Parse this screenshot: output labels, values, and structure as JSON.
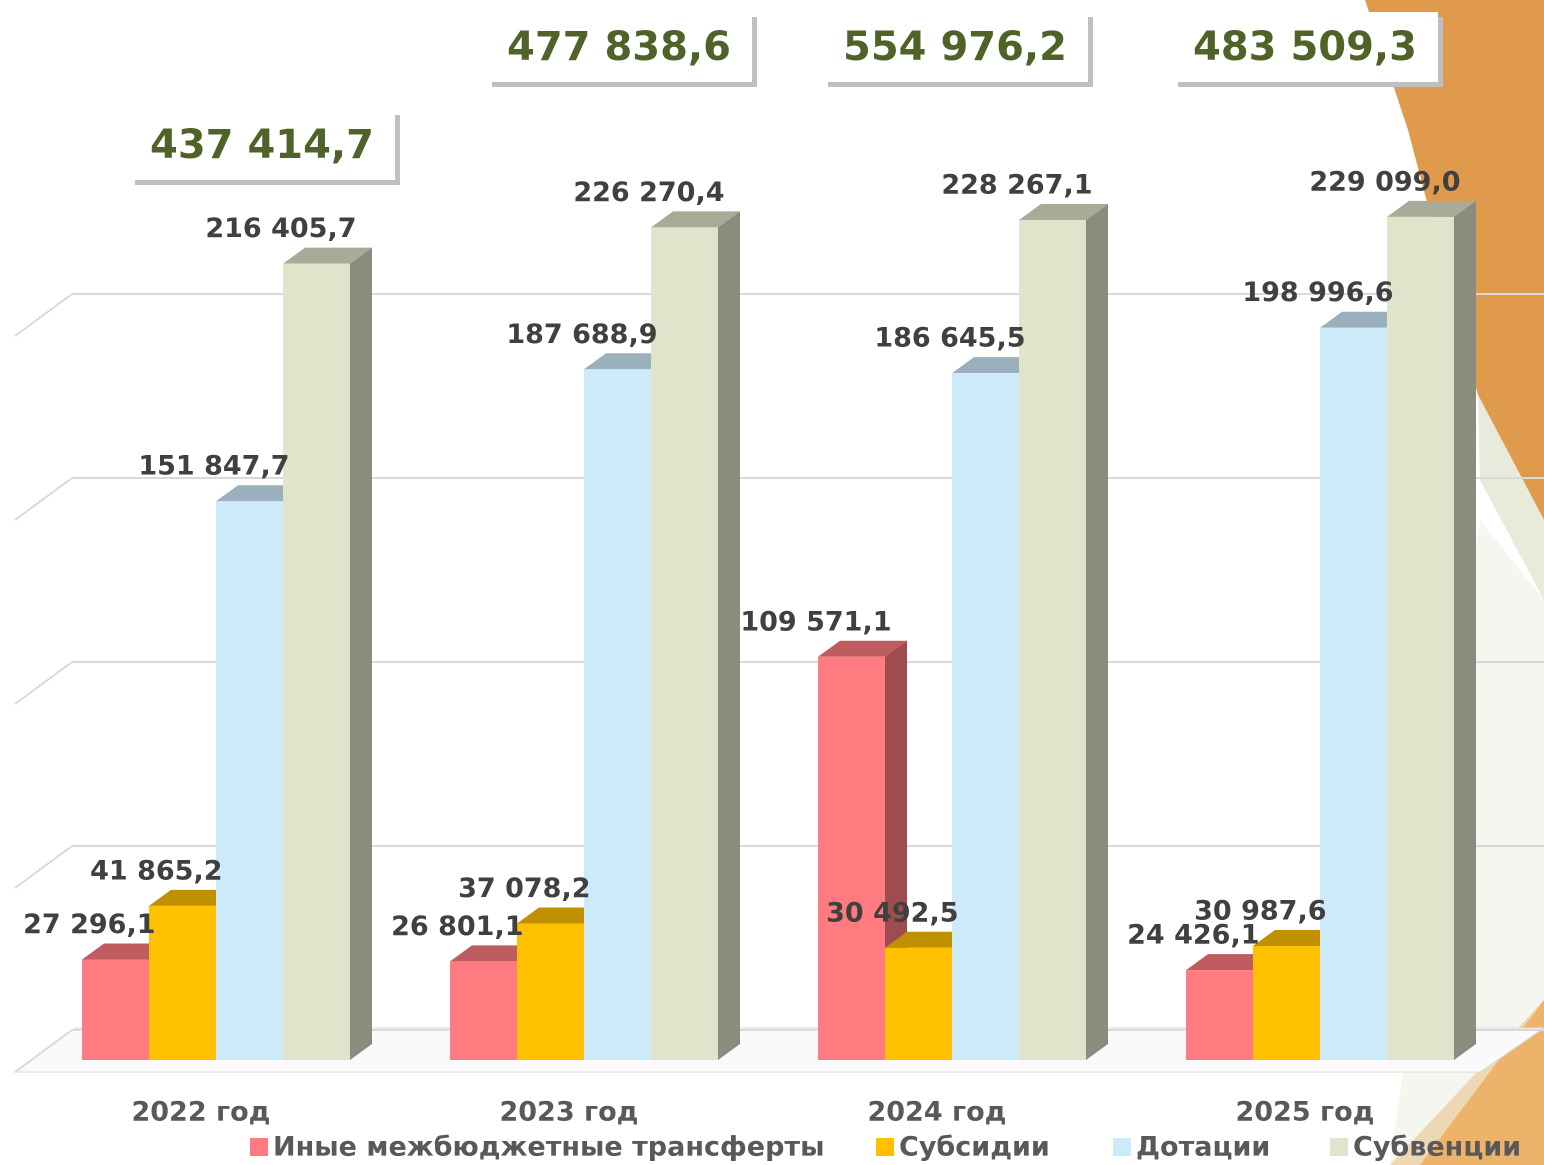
{
  "chart_data": {
    "type": "bar3d",
    "categories": [
      "2022 год",
      "2023 год",
      "2024 год",
      "2025 год"
    ],
    "series": [
      {
        "name": "Иные межбюджетные трансферты",
        "color": "#ff7b80",
        "values": [
          27296.1,
          26801.1,
          109571.1,
          24426.1
        ],
        "value_labels": [
          "27 296,1",
          "26 801,1",
          "109 571,1",
          "24 426,1"
        ]
      },
      {
        "name": "Субсидии",
        "color": "#ffc000",
        "values": [
          41865.2,
          37078.2,
          30492.5,
          30987.6
        ],
        "value_labels": [
          "41 865,2",
          "37 078,2",
          "30 492,5",
          "30 987,6"
        ]
      },
      {
        "name": "Дотации",
        "color": "#cdeafb",
        "values": [
          151847.7,
          187688.9,
          186645.5,
          198996.6
        ],
        "value_labels": [
          "151 847,7",
          "187 688,9",
          "186 645,5",
          "198 996,6"
        ]
      },
      {
        "name": "Субвенции",
        "color": "#dfe4cb",
        "values": [
          216405.7,
          226270.4,
          228267.1,
          229099.0
        ],
        "value_labels": [
          "216 405,7",
          "226 270,4",
          "228 267,1",
          "229 099,0"
        ]
      }
    ],
    "annotations": [
      "437 414,7",
      "477 838,6",
      "554 976,2",
      "483 509,3"
    ],
    "ylim": [
      0,
      250000
    ],
    "yticks": [
      0,
      50000,
      100000,
      150000,
      200000
    ],
    "grid": true,
    "legend": "bottom"
  }
}
